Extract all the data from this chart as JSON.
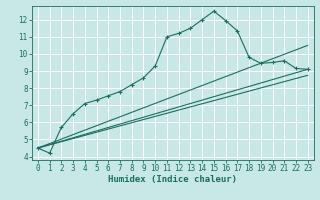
{
  "xlabel": "Humidex (Indice chaleur)",
  "bg_color": "#c8e8e8",
  "grid_color": "#ffffff",
  "line_color": "#1a6e5e",
  "xlim": [
    -0.5,
    23.5
  ],
  "ylim": [
    3.8,
    12.8
  ],
  "xticks": [
    0,
    1,
    2,
    3,
    4,
    5,
    6,
    7,
    8,
    9,
    10,
    11,
    12,
    13,
    14,
    15,
    16,
    17,
    18,
    19,
    20,
    21,
    22,
    23
  ],
  "yticks": [
    4,
    5,
    6,
    7,
    8,
    9,
    10,
    11,
    12
  ],
  "line1_x": [
    0,
    1,
    2,
    3,
    4,
    5,
    6,
    7,
    8,
    9,
    10,
    11,
    12,
    13,
    14,
    15,
    16,
    17,
    18,
    19,
    20,
    21,
    22,
    23
  ],
  "line1_y": [
    4.5,
    4.2,
    5.7,
    6.5,
    7.1,
    7.3,
    7.55,
    7.8,
    8.2,
    8.6,
    9.3,
    11.0,
    11.2,
    11.5,
    12.0,
    12.5,
    11.95,
    11.35,
    9.8,
    9.45,
    9.5,
    9.6,
    9.15,
    9.1
  ],
  "line2_x": [
    0,
    23
  ],
  "line2_y": [
    4.5,
    9.1
  ],
  "line3_x": [
    0,
    23
  ],
  "line3_y": [
    4.5,
    8.75
  ],
  "line4_x": [
    0,
    23
  ],
  "line4_y": [
    4.5,
    10.5
  ]
}
